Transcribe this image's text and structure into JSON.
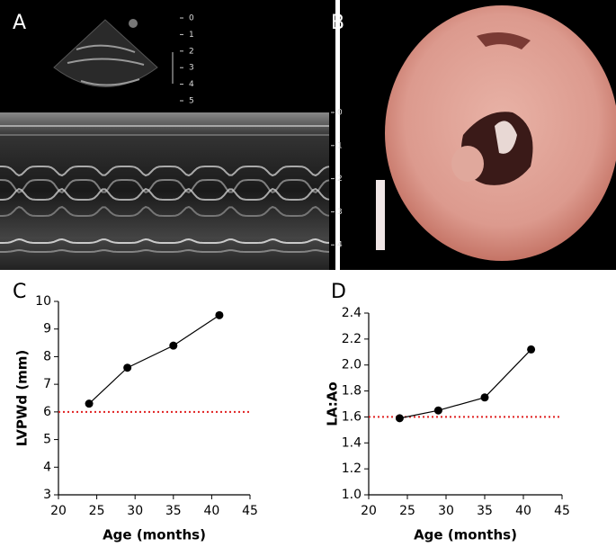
{
  "image_panels": [
    {
      "label": "A",
      "depth_ticks": [
        0,
        1,
        2,
        3,
        4,
        5
      ],
      "mmode_ticks": [
        0,
        1,
        2,
        3,
        4
      ]
    },
    {
      "label": "B"
    }
  ],
  "chart_data": [
    {
      "type": "line",
      "panel_label": "C",
      "xlabel": "Age (months)",
      "ylabel": "LVPWd (mm)",
      "x": [
        24,
        29,
        35,
        41
      ],
      "series": [
        {
          "color": "#000000",
          "values": [
            6.3,
            7.6,
            8.4,
            9.5
          ]
        }
      ],
      "xlim": [
        20,
        45
      ],
      "xticks": [
        20,
        25,
        30,
        35,
        40,
        45
      ],
      "ylim": [
        3,
        10
      ],
      "yticks": [
        3,
        4,
        5,
        6,
        7,
        8,
        9,
        10
      ],
      "reference_line": {
        "value": 6,
        "color": "#e02020"
      }
    },
    {
      "type": "line",
      "panel_label": "D",
      "xlabel": "Age (months)",
      "ylabel": "LA:Ao",
      "x": [
        24,
        29,
        35,
        41
      ],
      "series": [
        {
          "color": "#000000",
          "values": [
            1.59,
            1.65,
            1.75,
            2.12
          ]
        }
      ],
      "xlim": [
        20,
        45
      ],
      "xticks": [
        20,
        25,
        30,
        35,
        40,
        45
      ],
      "ylim": [
        1.0,
        2.4
      ],
      "yticks": [
        {
          "value": 1.0,
          "label": "1.0"
        },
        {
          "value": 1.2,
          "label": "1.2"
        },
        {
          "value": 1.4,
          "label": "1.4"
        },
        {
          "value": 1.6,
          "label": "1.6"
        },
        {
          "value": 1.8,
          "label": "1.8"
        },
        {
          "value": 2.0,
          "label": "2.0"
        },
        {
          "value": 2.2,
          "label": "2.2"
        },
        {
          "value": 2.4,
          "label": "2.4"
        }
      ],
      "reference_line": {
        "value": 1.6,
        "color": "#e02020"
      }
    }
  ]
}
